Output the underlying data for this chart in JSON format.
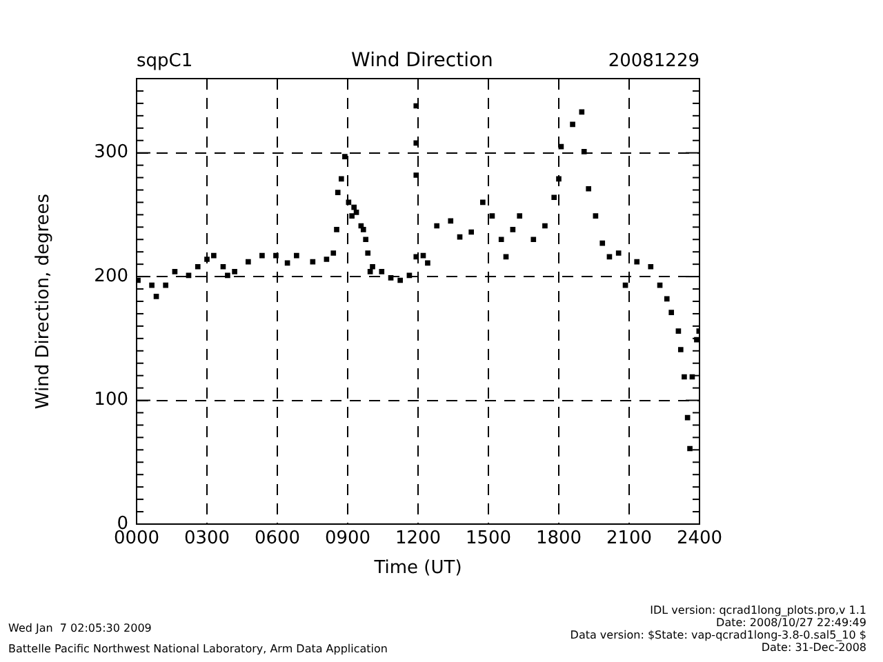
{
  "chart_data": {
    "type": "scatter",
    "title": "Wind Direction",
    "xlabel": "Time (UT)",
    "ylabel": "Wind Direction, degrees",
    "annotations": [
      "sqpC1",
      "20081229",
      "Wed Jan  7 02:05:30 2009",
      "Battelle Pacific Northwest National Laboratory, Arm Data Application",
      "IDL version: qcrad1long_plots.pro,v 1.1",
      "Date: 2008/10/27 22:49:49",
      "Data version: $State: vap-qcrad1long-3.8-0.sal5_10 $",
      "Date: 31-Dec-2008"
    ],
    "xlim": [
      0,
      2400
    ],
    "xticks": [
      {
        "value": 0,
        "label": "0000"
      },
      {
        "value": 300,
        "label": "0300"
      },
      {
        "value": 600,
        "label": "0600"
      },
      {
        "value": 900,
        "label": "0900"
      },
      1200,
      1500,
      1800,
      2100,
      2400
    ],
    "ylim": [
      0,
      360
    ],
    "yticks": [
      0,
      {
        "value": 10,
        "label": null
      },
      {
        "value": 20,
        "label": null
      },
      {
        "value": 30,
        "label": null
      },
      {
        "value": 40,
        "label": null
      },
      {
        "value": 50,
        "label": null
      },
      {
        "value": 60,
        "label": null
      },
      {
        "value": 70,
        "label": null
      },
      {
        "value": 80,
        "label": null
      },
      {
        "value": 90,
        "label": null
      },
      100,
      {
        "value": 110,
        "label": null
      },
      {
        "value": 120,
        "label": null
      },
      {
        "value": 130,
        "label": null
      },
      {
        "value": 140,
        "label": null
      },
      {
        "value": 150,
        "label": null
      },
      {
        "value": 160,
        "label": null
      },
      {
        "value": 170,
        "label": null
      },
      {
        "value": 180,
        "label": null
      },
      {
        "value": 190,
        "label": null
      },
      200,
      {
        "value": 210,
        "label": null
      },
      {
        "value": 220,
        "label": null
      },
      {
        "value": 230,
        "label": null
      },
      {
        "value": 240,
        "label": null
      },
      {
        "value": 250,
        "label": null
      },
      {
        "value": 260,
        "label": null
      },
      {
        "value": 270,
        "label": null
      },
      {
        "value": 280,
        "label": null
      },
      {
        "value": 290,
        "label": null
      },
      300,
      {
        "value": 310,
        "label": null
      },
      {
        "value": 320,
        "label": null
      },
      {
        "value": 330,
        "label": null
      },
      {
        "value": 340,
        "label": null
      },
      {
        "value": 350,
        "label": null
      },
      {
        "value": 360,
        "label": null
      }
    ],
    "grid": true,
    "marker": "square",
    "legend": false,
    "series": [
      {
        "color": "#000000",
        "x": [
          6,
          65,
          84,
          124,
          163,
          222,
          261,
          300,
          329,
          369,
          388,
          418,
          476,
          535,
          594,
          643,
          682,
          751,
          810,
          839,
          853,
          858,
          873,
          888,
          904,
          918,
          937,
          957,
          977,
          996,
          927,
          967,
          986,
          1006,
          1045,
          1084,
          1124,
          1163,
          1192,
          1222,
          1241,
          1280,
          1339,
          1378,
          1427,
          1476,
          1516,
          1555,
          1575,
          1604,
          1633,
          1692,
          1741,
          1780,
          1800,
          1192,
          1192,
          1192,
          1810,
          1859,
          1898,
          1908,
          1927,
          1957,
          1986,
          2016,
          2055,
          2084,
          2133,
          2192,
          2231,
          2261,
          2280,
          2310,
          2320,
          2335,
          2349,
          2359,
          2369,
          2388,
          2398
        ],
        "values": [
          197,
          193,
          184,
          193,
          204,
          201,
          208,
          214,
          217,
          208,
          201,
          204,
          212,
          217,
          217,
          211,
          217,
          212,
          214,
          219,
          238,
          268,
          279,
          297,
          260,
          249,
          252,
          241,
          230,
          204,
          256,
          238,
          219,
          208,
          204,
          199,
          197,
          201,
          216,
          217,
          211,
          241,
          245,
          232,
          236,
          260,
          249,
          230,
          216,
          238,
          249,
          230,
          241,
          264,
          279,
          338,
          308,
          282,
          305,
          323,
          333,
          301,
          271,
          249,
          227,
          216,
          219,
          193,
          212,
          208,
          193,
          182,
          171,
          156,
          141,
          119,
          86,
          61,
          119,
          149,
          156
        ]
      }
    ]
  }
}
